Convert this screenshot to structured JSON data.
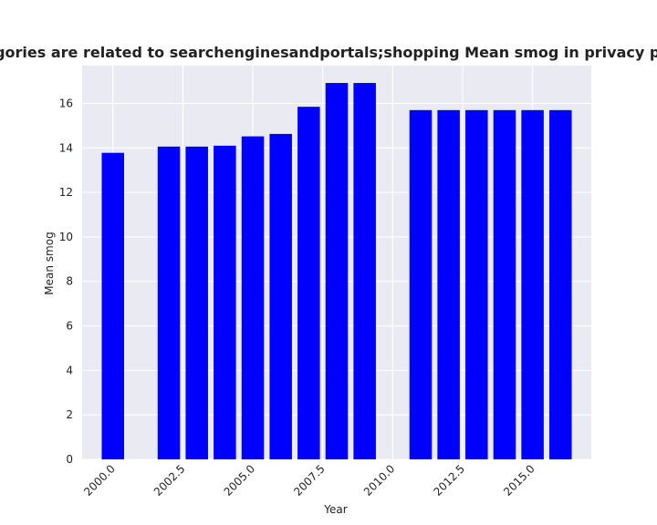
{
  "chart_data": {
    "type": "bar",
    "title": "n categories are related to searchenginesandportals;shopping Mean smog in privacy policies b",
    "xlabel": "Year",
    "ylabel": "Mean smog",
    "xlim": [
      1998.9,
      2017.1
    ],
    "ylim": [
      0,
      17.7
    ],
    "xticks": [
      2000.0,
      2002.5,
      2005.0,
      2007.5,
      2010.0,
      2012.5,
      2015.0
    ],
    "xtick_labels": [
      "2000.0",
      "2002.5",
      "2005.0",
      "2007.5",
      "2010.0",
      "2012.5",
      "2015.0"
    ],
    "yticks": [
      0,
      2,
      4,
      6,
      8,
      10,
      12,
      14,
      16
    ],
    "ytick_labels": [
      "0",
      "2",
      "4",
      "6",
      "8",
      "10",
      "12",
      "14",
      "16"
    ],
    "grid": true,
    "bar_width": 0.8,
    "bar_color": "#0000ff",
    "background_color": "#eaeaf2",
    "x": [
      2000,
      2002,
      2003,
      2004,
      2005,
      2006,
      2007,
      2008,
      2009,
      2011,
      2012,
      2013,
      2014,
      2015,
      2016
    ],
    "values": [
      13.78,
      14.06,
      14.06,
      14.1,
      14.52,
      14.63,
      15.85,
      16.92,
      16.92,
      15.7,
      15.7,
      15.7,
      15.7,
      15.7,
      15.7
    ]
  }
}
